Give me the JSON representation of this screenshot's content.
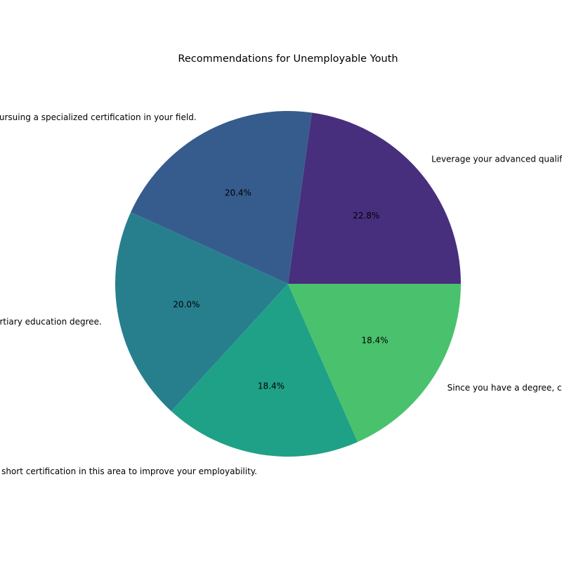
{
  "chart_data": {
    "type": "pie",
    "title": "Recommendations for Unemployable Youth",
    "categories": [
      "Leverage your advanced qualification to apply for specialized roles.",
      "Consider pursuing a specialized certification in your field.",
      "Leverage your tertiary education degree.",
      "Consider a short certification in this area to improve your employability.",
      "Since you have a degree, consider applying for related roles."
    ],
    "values": [
      22.8,
      20.4,
      20.0,
      18.4,
      18.4
    ],
    "value_labels": [
      "22.8%",
      "20.4%",
      "20.0%",
      "18.4%",
      "18.4%"
    ],
    "colors": [
      "#472f7d",
      "#365c8d",
      "#277f8e",
      "#1fa187",
      "#4ac16d"
    ],
    "start_angle_deg": 0,
    "direction": "counterclockwise"
  }
}
